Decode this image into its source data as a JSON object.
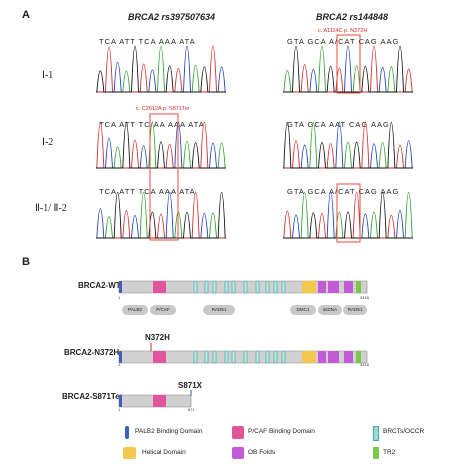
{
  "panel_a": {
    "label": "A",
    "left_title": "BRCA2 rs397507634",
    "right_title": "BRCA2 rs144848",
    "rows": [
      "Ⅰ-1",
      "Ⅰ-2",
      "Ⅱ-1/ Ⅱ-2"
    ],
    "left_seq": "TCA ATT TCA AAA ATA",
    "left_seq_mut": "TCA ATT TC/AA AAA ATA",
    "right_seq": "GTA GCA AAT CAG AAG",
    "right_seq_mut": "GTA GCA A/CAT CAG AAG",
    "left_mutation": "c. C2612A p. S871Ter",
    "right_mutation": "c. A1114C p. N372H"
  },
  "panel_b": {
    "label": "B",
    "proteins": [
      {
        "name": "BRCA2-WT",
        "start": "1",
        "end": "3418"
      },
      {
        "name": "BRCA2-N372H",
        "start": "1",
        "end": "3418",
        "mutation": "N372H",
        "mutation_color": "#d62728"
      },
      {
        "name": "BRCA2-S871Ter",
        "start": "1",
        "end": "871",
        "mutation": "S871X",
        "mutation_color": "#1f5fbf"
      }
    ],
    "domain_labels": [
      "PALB2",
      "P/CAF",
      "RAD51",
      "DMC1",
      "ssDNA",
      "RAD51"
    ],
    "legend": [
      {
        "label": "PALB2 Binding Domain",
        "color": "#3f5fbf"
      },
      {
        "label": "P/CAF Binding Domain",
        "color": "#e3559a"
      },
      {
        "label": "BRCTs/OCCR",
        "color": "#9fd8d0"
      },
      {
        "label": "Helical Domain",
        "color": "#f2c94c"
      },
      {
        "label": "OB Folds",
        "color": "#c45bd6"
      },
      {
        "label": "TR2",
        "color": "#7cc84a"
      }
    ]
  }
}
